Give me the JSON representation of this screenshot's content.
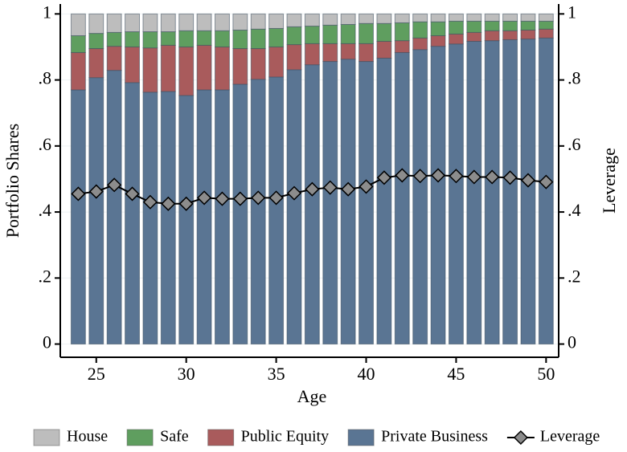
{
  "chart_data": {
    "type": "bar",
    "stacked": true,
    "x_label": "Age",
    "y_label": "Portfolio Shares",
    "y2_label": "Leverage",
    "x": [
      24,
      25,
      26,
      27,
      28,
      29,
      30,
      31,
      32,
      33,
      34,
      35,
      36,
      37,
      38,
      39,
      40,
      41,
      42,
      43,
      44,
      45,
      46,
      47,
      48,
      49,
      50
    ],
    "xlim": [
      23,
      50.7
    ],
    "xticks": [
      25,
      30,
      35,
      40,
      45,
      50
    ],
    "ylim": [
      -0.04,
      1.03
    ],
    "yticks": [
      0,
      {
        "value": 0.2,
        "label": ".2"
      },
      {
        "value": 0.4,
        "label": ".4"
      },
      {
        "value": 0.6,
        "label": ".6"
      },
      {
        "value": 0.8,
        "label": ".8"
      },
      1
    ],
    "y2lim": [
      -0.04,
      1.03
    ],
    "y2ticks": [
      0,
      {
        "value": 0.2,
        "label": ".2"
      },
      {
        "value": 0.4,
        "label": ".4"
      },
      {
        "value": 0.6,
        "label": ".6"
      },
      {
        "value": 0.8,
        "label": ".8"
      },
      1
    ],
    "grid": true,
    "legend": "bottom",
    "series": [
      {
        "name": "House",
        "color": "#bdbdbd",
        "values": [
          0.066,
          0.059,
          0.056,
          0.054,
          0.054,
          0.054,
          0.051,
          0.051,
          0.051,
          0.049,
          0.046,
          0.044,
          0.039,
          0.037,
          0.034,
          0.032,
          0.029,
          0.029,
          0.027,
          0.024,
          0.024,
          0.022,
          0.022,
          0.022,
          0.022,
          0.022,
          0.022
        ]
      },
      {
        "name": "Safe",
        "color": "#5f9e5f",
        "values": [
          0.051,
          0.046,
          0.042,
          0.046,
          0.049,
          0.041,
          0.049,
          0.044,
          0.049,
          0.056,
          0.059,
          0.056,
          0.054,
          0.053,
          0.056,
          0.058,
          0.061,
          0.054,
          0.054,
          0.049,
          0.042,
          0.039,
          0.034,
          0.029,
          0.029,
          0.027,
          0.024
        ]
      },
      {
        "name": "Public Equity",
        "color": "#a95b5c",
        "values": [
          0.113,
          0.088,
          0.073,
          0.108,
          0.134,
          0.14,
          0.147,
          0.135,
          0.13,
          0.108,
          0.093,
          0.091,
          0.076,
          0.064,
          0.054,
          0.047,
          0.054,
          0.051,
          0.036,
          0.035,
          0.032,
          0.03,
          0.027,
          0.03,
          0.027,
          0.027,
          0.027
        ]
      },
      {
        "name": "Private Business",
        "color": "#5a7593",
        "values": [
          0.77,
          0.807,
          0.829,
          0.792,
          0.763,
          0.765,
          0.753,
          0.77,
          0.77,
          0.787,
          0.802,
          0.809,
          0.831,
          0.846,
          0.856,
          0.863,
          0.856,
          0.866,
          0.883,
          0.892,
          0.902,
          0.909,
          0.917,
          0.919,
          0.922,
          0.924,
          0.927
        ]
      },
      {
        "name": "Leverage",
        "type": "line",
        "axis": "y2",
        "color": "#8c8c8c",
        "values": [
          0.455,
          0.462,
          0.482,
          0.455,
          0.43,
          0.425,
          0.425,
          0.443,
          0.44,
          0.44,
          0.443,
          0.443,
          0.457,
          0.469,
          0.474,
          0.469,
          0.477,
          0.504,
          0.511,
          0.509,
          0.511,
          0.509,
          0.506,
          0.506,
          0.504,
          0.496,
          0.491
        ]
      }
    ]
  }
}
